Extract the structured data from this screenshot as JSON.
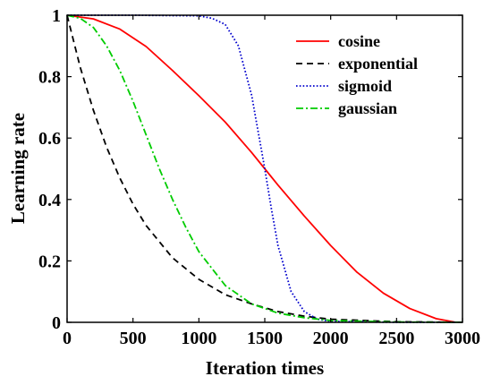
{
  "chart_data": {
    "type": "line",
    "title": "",
    "xlabel": "Iteration times",
    "ylabel": "Learning rate",
    "xlim": [
      0,
      3000
    ],
    "ylim": [
      0,
      1
    ],
    "grid": false,
    "legend_position": "top-right",
    "xticks": [
      {
        "value": 0,
        "label": "0"
      },
      {
        "value": 500,
        "label": "500"
      },
      {
        "value": 1000,
        "label": "1000"
      },
      {
        "value": 1500,
        "label": "1500"
      },
      {
        "value": 2000,
        "label": "2000"
      },
      {
        "value": 2500,
        "label": "2500"
      },
      {
        "value": 3000,
        "label": "3000"
      }
    ],
    "yticks": [
      {
        "value": 0,
        "label": "0"
      },
      {
        "value": 0.2,
        "label": "0.2"
      },
      {
        "value": 0.4,
        "label": "0.4"
      },
      {
        "value": 0.6,
        "label": "0.6"
      },
      {
        "value": 0.8,
        "label": "0.8"
      },
      {
        "value": 1,
        "label": "1"
      }
    ],
    "series": [
      {
        "name": "cosine",
        "color": "#ff0000",
        "dash": "solid",
        "x": [
          0,
          200,
          400,
          600,
          800,
          1000,
          1200,
          1400,
          1500,
          1600,
          1800,
          2000,
          2200,
          2400,
          2600,
          2800,
          2950,
          3000
        ],
        "y": [
          1.0,
          0.988,
          0.955,
          0.898,
          0.82,
          0.738,
          0.652,
          0.553,
          0.5,
          0.447,
          0.346,
          0.25,
          0.163,
          0.095,
          0.045,
          0.012,
          0.0,
          0.0
        ]
      },
      {
        "name": "exponential",
        "color": "#000000",
        "dash": "dashed",
        "x": [
          0,
          100,
          200,
          300,
          400,
          500,
          600,
          800,
          1000,
          1200,
          1400,
          1600,
          1800,
          2000,
          2500,
          3000
        ],
        "y": [
          1.0,
          0.83,
          0.69,
          0.57,
          0.47,
          0.385,
          0.315,
          0.21,
          0.14,
          0.09,
          0.06,
          0.035,
          0.02,
          0.01,
          0.002,
          0.0
        ]
      },
      {
        "name": "sigmoid",
        "color": "#0000cd",
        "dash": "dotted",
        "x": [
          0,
          500,
          1000,
          1100,
          1200,
          1300,
          1400,
          1450,
          1500,
          1550,
          1600,
          1700,
          1800,
          1900,
          2000,
          2500,
          3000
        ],
        "y": [
          1.0,
          1.0,
          0.998,
          0.99,
          0.97,
          0.9,
          0.74,
          0.62,
          0.5,
          0.37,
          0.25,
          0.1,
          0.035,
          0.01,
          0.003,
          0.0,
          0.0
        ]
      },
      {
        "name": "gaussian",
        "color": "#00cc00",
        "dash": "dashdot",
        "x": [
          0,
          100,
          200,
          300,
          400,
          500,
          600,
          700,
          800,
          900,
          1000,
          1200,
          1400,
          1600,
          1800,
          2000,
          2500,
          3000
        ],
        "y": [
          1.0,
          0.99,
          0.96,
          0.9,
          0.82,
          0.72,
          0.61,
          0.5,
          0.4,
          0.31,
          0.23,
          0.12,
          0.06,
          0.03,
          0.015,
          0.006,
          0.001,
          0.0
        ]
      }
    ]
  }
}
